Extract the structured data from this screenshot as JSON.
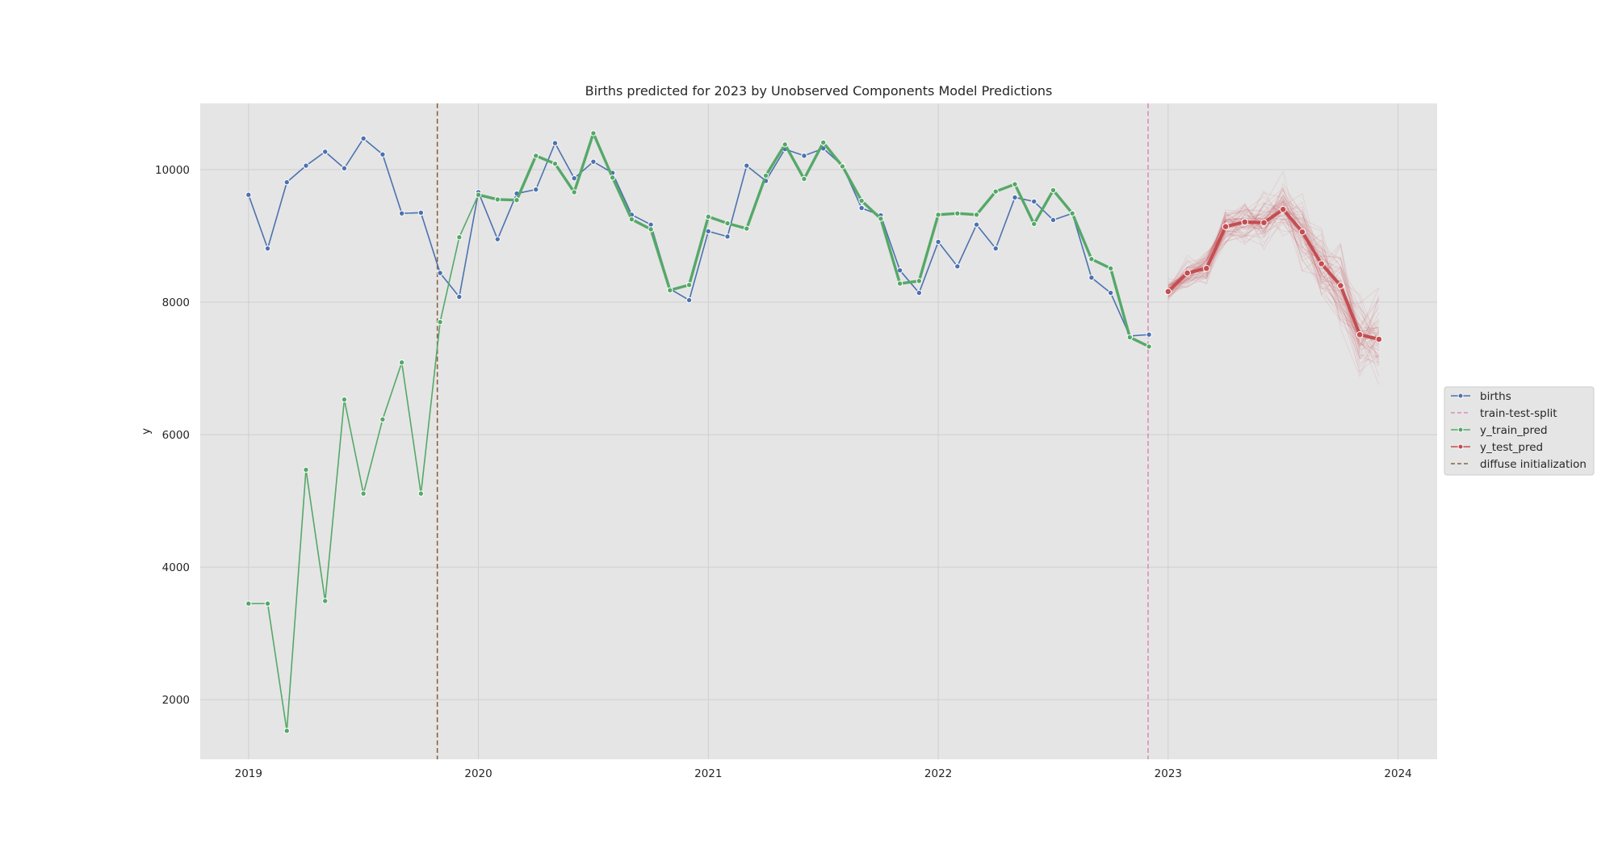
{
  "chart_data": {
    "type": "line",
    "title": "Births predicted for 2023 by Unobserved Components Model Predictions",
    "xlabel": "",
    "ylabel": "y",
    "xlim": [
      2018.79,
      2024.17
    ],
    "ylim": [
      1100,
      11000
    ],
    "x_ticks": [
      2019,
      2020,
      2021,
      2022,
      2023,
      2024
    ],
    "y_ticks": [
      2000,
      4000,
      6000,
      8000,
      10000
    ],
    "grid": true,
    "legend_position": "right",
    "colors": {
      "births": "#4c72b0",
      "y_train_pred": "#55a868",
      "y_test_pred": "#c44e52",
      "train_test_split": "#dd8bbf",
      "diffuse_initialization": "#8c613c",
      "axes_bg": "#e5e5e5",
      "grid": "#cfcfcf"
    },
    "series": [
      {
        "name": "births",
        "x": [
          "2019-01",
          "2019-02",
          "2019-03",
          "2019-04",
          "2019-05",
          "2019-06",
          "2019-07",
          "2019-08",
          "2019-09",
          "2019-10",
          "2019-11",
          "2019-12",
          "2020-01",
          "2020-02",
          "2020-03",
          "2020-04",
          "2020-05",
          "2020-06",
          "2020-07",
          "2020-08",
          "2020-09",
          "2020-10",
          "2020-11",
          "2020-12",
          "2021-01",
          "2021-02",
          "2021-03",
          "2021-04",
          "2021-05",
          "2021-06",
          "2021-07",
          "2021-08",
          "2021-09",
          "2021-10",
          "2021-11",
          "2021-12",
          "2022-01",
          "2022-02",
          "2022-03",
          "2022-04",
          "2022-05",
          "2022-06",
          "2022-07",
          "2022-08",
          "2022-09",
          "2022-10",
          "2022-11",
          "2022-12"
        ],
        "values": [
          9620,
          8810,
          9810,
          10060,
          10270,
          10020,
          10470,
          10230,
          9340,
          9350,
          8440,
          8080,
          9660,
          8950,
          9640,
          9700,
          10400,
          9870,
          10120,
          9950,
          9320,
          9170,
          8200,
          8030,
          9070,
          8990,
          10060,
          9830,
          10310,
          10210,
          10320,
          10060,
          9420,
          9310,
          8480,
          8140,
          8910,
          8540,
          9170,
          8810,
          9580,
          9520,
          9240,
          9340,
          8370,
          8140,
          7490,
          7510
        ]
      },
      {
        "name": "y_train_pred",
        "x": [
          "2019-01",
          "2019-02",
          "2019-03",
          "2019-04",
          "2019-05",
          "2019-06",
          "2019-07",
          "2019-08",
          "2019-09",
          "2019-10",
          "2019-11",
          "2019-12",
          "2020-01",
          "2020-02",
          "2020-03",
          "2020-04",
          "2020-05",
          "2020-06",
          "2020-07",
          "2020-08",
          "2020-09",
          "2020-10",
          "2020-11",
          "2020-12",
          "2021-01",
          "2021-02",
          "2021-03",
          "2021-04",
          "2021-05",
          "2021-06",
          "2021-07",
          "2021-08",
          "2021-09",
          "2021-10",
          "2021-11",
          "2021-12",
          "2022-01",
          "2022-02",
          "2022-03",
          "2022-04",
          "2022-05",
          "2022-06",
          "2022-07",
          "2022-08",
          "2022-09",
          "2022-10",
          "2022-11",
          "2022-12"
        ],
        "values": [
          3450,
          3450,
          1530,
          5470,
          3490,
          6530,
          5110,
          6230,
          7090,
          5110,
          7700,
          8980,
          9620,
          9550,
          9540,
          10210,
          10090,
          9660,
          10550,
          9880,
          9250,
          9100,
          8180,
          8260,
          9290,
          9190,
          9110,
          9910,
          10380,
          9860,
          10410,
          10050,
          9530,
          9260,
          8280,
          8320,
          9320,
          9340,
          9320,
          9670,
          9780,
          9180,
          9690,
          9340,
          8650,
          8510,
          7470,
          7330
        ]
      },
      {
        "name": "y_test_pred",
        "x": [
          "2023-01",
          "2023-02",
          "2023-03",
          "2023-04",
          "2023-05",
          "2023-06",
          "2023-07",
          "2023-08",
          "2023-09",
          "2023-10",
          "2023-11",
          "2023-12"
        ],
        "values": [
          8160,
          8440,
          8510,
          9140,
          9210,
          9200,
          9400,
          9060,
          8580,
          8250,
          7510,
          7440
        ]
      }
    ],
    "vertical_lines": [
      {
        "name": "train-test-split",
        "x": "2022-11-30",
        "style": "dashed"
      },
      {
        "name": "diffuse initialization",
        "x": "2019-10-27",
        "style": "dashed"
      }
    ],
    "legend": [
      {
        "label": "births",
        "kind": "line-marker",
        "color": "#4c72b0"
      },
      {
        "label": "train-test-split",
        "kind": "dashed",
        "color": "#dd8bbf"
      },
      {
        "label": "y_train_pred",
        "kind": "line-marker",
        "color": "#55a868"
      },
      {
        "label": "y_test_pred",
        "kind": "line-marker",
        "color": "#c44e52"
      },
      {
        "label": "diffuse initialization",
        "kind": "dashed",
        "color": "#8c613c"
      }
    ]
  }
}
